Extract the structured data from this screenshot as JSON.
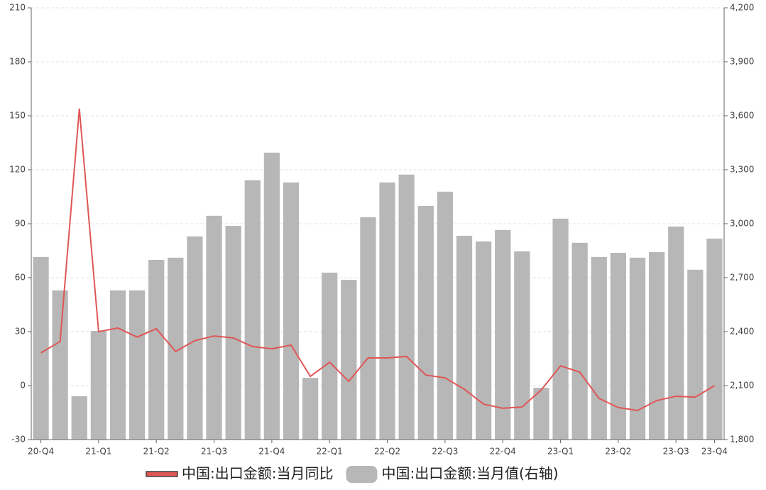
{
  "chart_data": {
    "type": "combo",
    "categories": [
      "20-Q4",
      null,
      null,
      "21-Q1",
      null,
      null,
      "21-Q2",
      null,
      null,
      "21-Q3",
      null,
      null,
      "21-Q4",
      null,
      null,
      "22-Q1",
      null,
      null,
      "22-Q2",
      null,
      null,
      "22-Q3",
      null,
      null,
      "22-Q4",
      null,
      null,
      "23-Q1",
      null,
      null,
      "23-Q2",
      null,
      null,
      "23-Q3",
      null,
      "23-Q4"
    ],
    "series": [
      {
        "name": "中国:出口金额:当月值(右轴)",
        "type": "bar",
        "axis": "y2",
        "color": "#b7b7b7",
        "values": [
          2815,
          2629,
          2041,
          2404,
          2629,
          2629,
          2799,
          2811,
          2929,
          3044,
          2988,
          3241,
          3395,
          3229,
          2143,
          2728,
          2688,
          3036,
          3229,
          3273,
          3099,
          3178,
          2933,
          2901,
          2965,
          2846,
          2088,
          3028,
          2894,
          2815,
          2838,
          2811,
          2842,
          2984,
          2744,
          2917
        ]
      },
      {
        "name": "中国:出口金额:当月同比",
        "type": "line",
        "color": "#e05656",
        "values": [
          18.2,
          24.5,
          154,
          30,
          32,
          27,
          31.6,
          19,
          25,
          27.6,
          26.5,
          21.7,
          20.5,
          22.5,
          5.1,
          13,
          2.4,
          15.4,
          15.4,
          16.2,
          5.9,
          4.3,
          -2,
          -10.3,
          -12.6,
          -11.9,
          -2.4,
          11,
          7.5,
          -7.1,
          -12.2,
          -13.8,
          -8.3,
          -5.9,
          -6.4,
          0
        ]
      }
    ],
    "ylim": [
      -30,
      210
    ],
    "yticks": [
      -30,
      0,
      30,
      60,
      90,
      120,
      150,
      180,
      210
    ],
    "y2lim": [
      1800,
      4200
    ],
    "y2ticks": [
      {
        "value": 1800,
        "label": "1,800"
      },
      {
        "value": 2100,
        "label": "2,100"
      },
      {
        "value": 2400,
        "label": "2,400"
      },
      {
        "value": 2700,
        "label": "2,700"
      },
      {
        "value": 3000,
        "label": "3,000"
      },
      {
        "value": 3300,
        "label": "3,300"
      },
      {
        "value": 3600,
        "label": "3,600"
      },
      {
        "value": 3900,
        "label": "3,900"
      },
      {
        "value": 4200,
        "label": "4,200"
      }
    ],
    "grid": true,
    "legend": "bottom"
  }
}
